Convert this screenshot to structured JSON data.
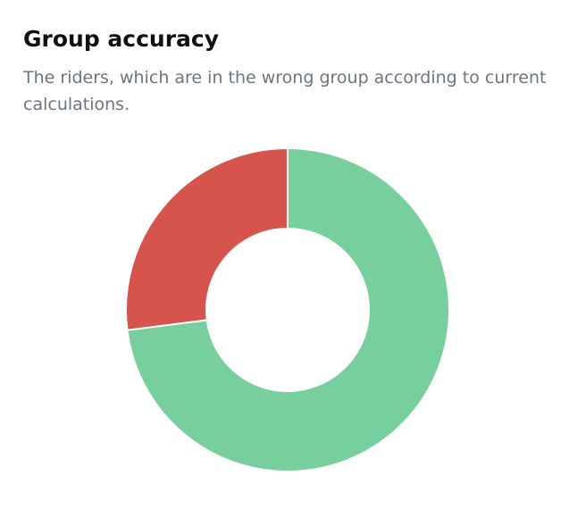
{
  "chart_data": {
    "type": "donut",
    "title": "Group accuracy",
    "subtitle": "The riders, which are in the wrong group according to current calculations.",
    "values": [
      73,
      27
    ],
    "colors": [
      "#78cf9e",
      "#d6544b"
    ]
  }
}
